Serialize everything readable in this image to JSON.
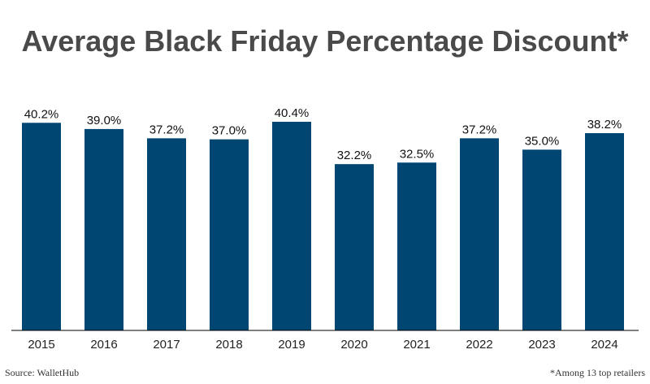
{
  "chart_data": {
    "type": "bar",
    "title": "Average Black Friday Percentage Discount*",
    "categories": [
      "2015",
      "2016",
      "2017",
      "2018",
      "2019",
      "2020",
      "2021",
      "2022",
      "2023",
      "2024"
    ],
    "values": [
      40.2,
      39.0,
      37.2,
      37.0,
      40.4,
      32.2,
      32.5,
      37.2,
      35.0,
      38.2
    ],
    "value_labels": [
      "40.2%",
      "39.0%",
      "37.2%",
      "37.0%",
      "40.4%",
      "32.2%",
      "32.5%",
      "37.2%",
      "35.0%",
      "38.2%"
    ],
    "xlabel": "",
    "ylabel": "",
    "ylim": [
      0,
      40.4
    ],
    "grid": false,
    "bar_color": "#004672"
  },
  "source": "Source: WalletHub",
  "footnote": "*Among 13 top retailers"
}
